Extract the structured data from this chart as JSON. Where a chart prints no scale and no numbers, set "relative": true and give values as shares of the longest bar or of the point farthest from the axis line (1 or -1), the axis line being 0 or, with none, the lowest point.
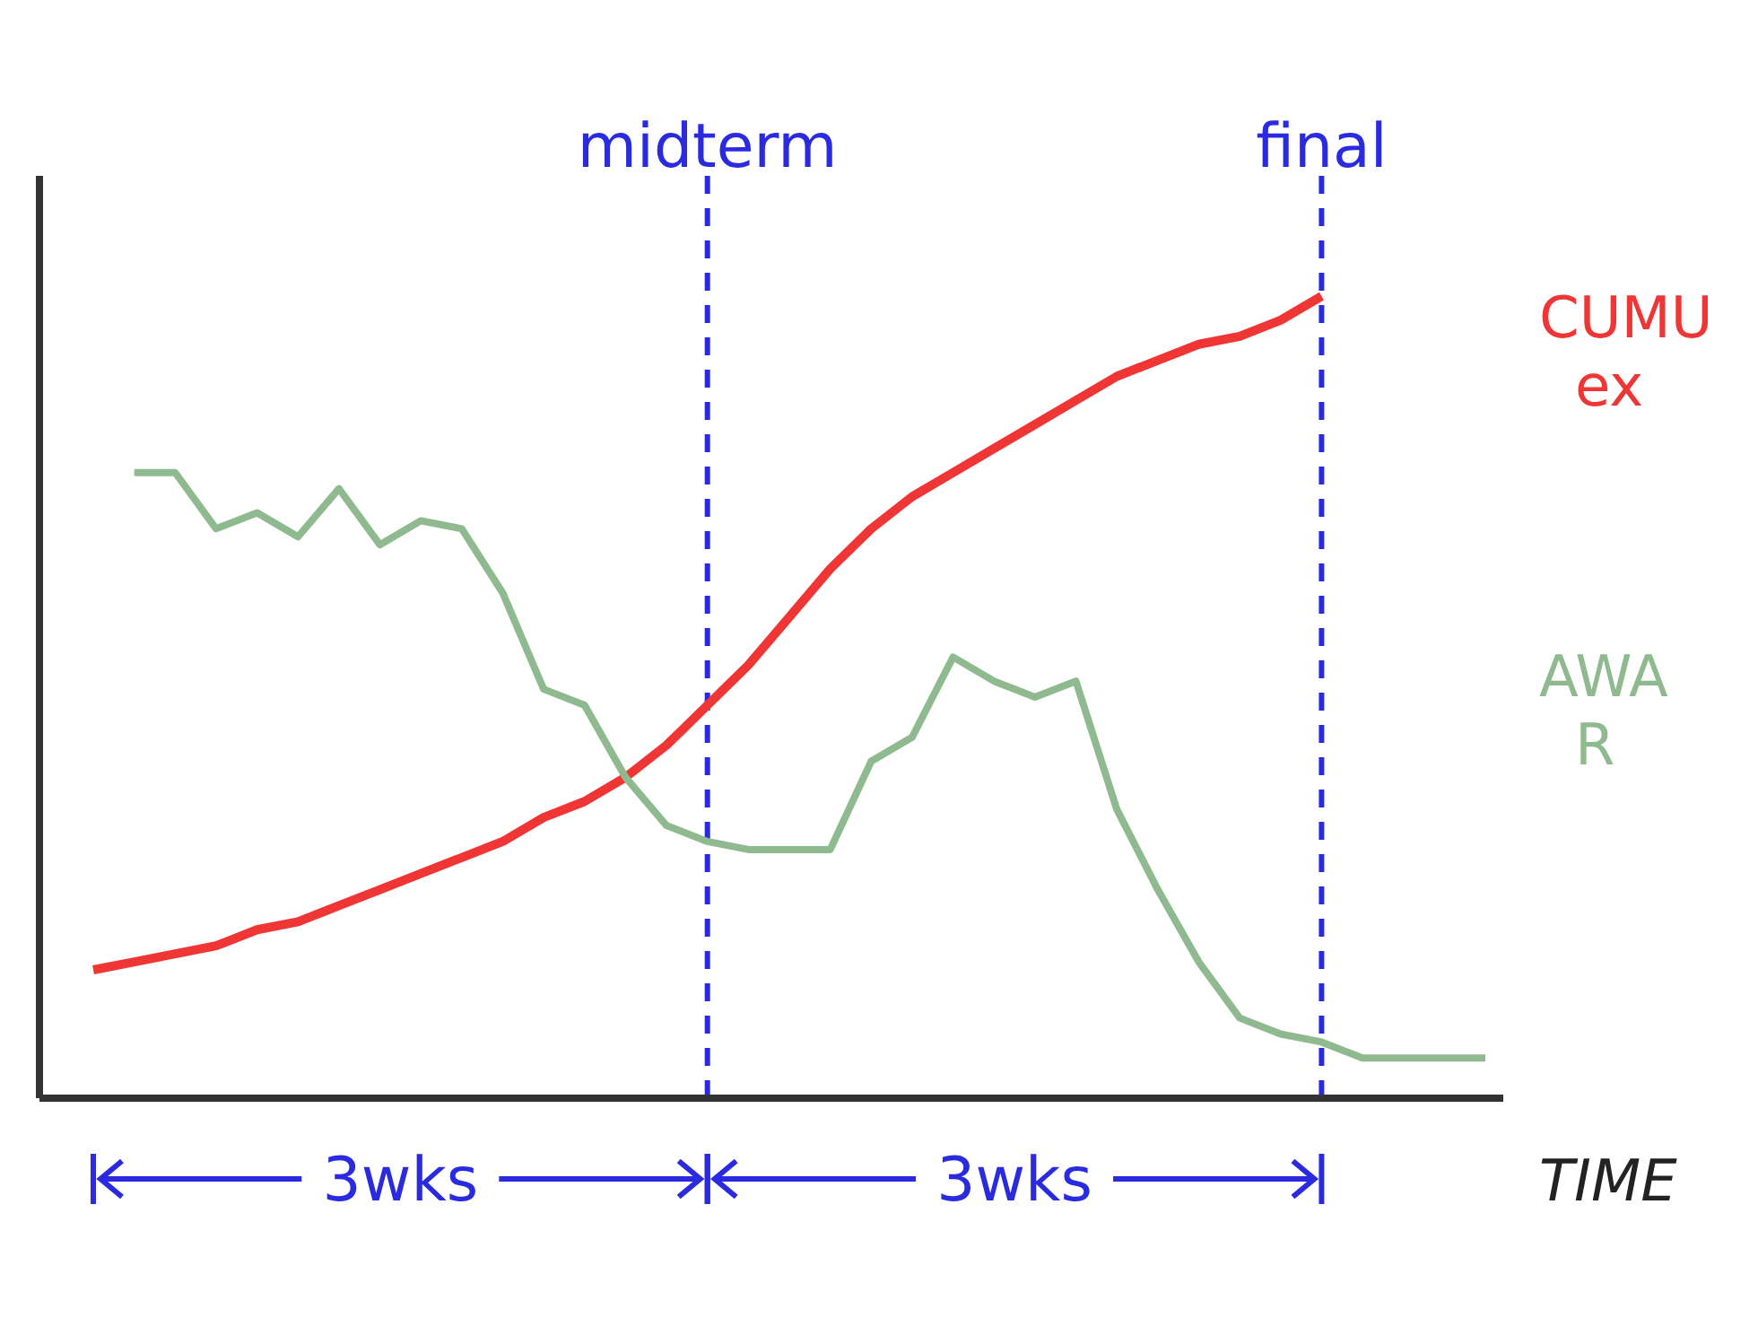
{
  "chart_data": {
    "type": "line",
    "relative": true,
    "xlabel": "TIME",
    "marker": "none",
    "categories": [
      null,
      null,
      null,
      null,
      null,
      null,
      null,
      null,
      null,
      null,
      null,
      null,
      null,
      null,
      null,
      null,
      null,
      null,
      null,
      null,
      null,
      null,
      null,
      null,
      null,
      null,
      null,
      null,
      null,
      null,
      null,
      null,
      null,
      null,
      null
    ],
    "series": [
      {
        "name": "CUMU ex",
        "color": "#f03535",
        "values": [
          0.16,
          0.17,
          0.18,
          0.19,
          0.21,
          0.22,
          0.24,
          0.26,
          0.28,
          0.3,
          0.32,
          0.35,
          0.37,
          0.4,
          0.44,
          0.49,
          0.54,
          0.6,
          0.66,
          0.71,
          0.75,
          0.78,
          0.81,
          0.84,
          0.87,
          0.9,
          0.92,
          0.94,
          0.95,
          0.97,
          1.0,
          null,
          null,
          null,
          null
        ]
      },
      {
        "name": "AWA R",
        "color": "#8fb98f",
        "values": [
          null,
          0.78,
          0.78,
          0.71,
          0.73,
          0.7,
          0.76,
          0.69,
          0.72,
          0.71,
          0.63,
          0.51,
          0.49,
          0.4,
          0.34,
          0.32,
          0.31,
          0.31,
          0.31,
          0.42,
          0.45,
          0.55,
          0.52,
          0.5,
          0.52,
          0.36,
          0.26,
          0.17,
          0.1,
          0.08,
          0.07,
          0.05,
          0.05,
          0.05,
          0.05
        ]
      }
    ],
    "annotations": [
      "midterm",
      "final",
      "3wks",
      "3wks"
    ]
  }
}
